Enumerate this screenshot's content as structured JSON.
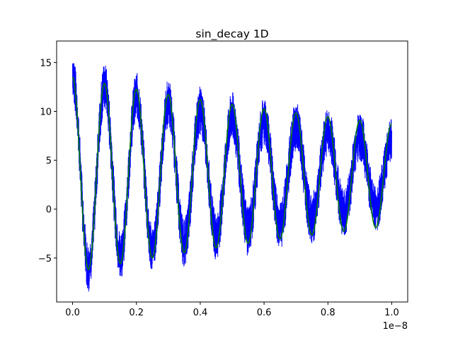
{
  "chart_data": {
    "type": "line",
    "title": "sin_decay 1D",
    "xlabel": "",
    "ylabel": "",
    "x_offset_label": "1e−8",
    "xlim": [
      -0.05,
      1.05
    ],
    "ylim": [
      -9.5,
      17.2
    ],
    "x_ticks": [
      0.0,
      0.2,
      0.4,
      0.6,
      0.8,
      1.0
    ],
    "x_tick_labels": [
      "0.0",
      "0.2",
      "0.4",
      "0.6",
      "0.8",
      "1.0"
    ],
    "y_ticks": [
      -5,
      0,
      5,
      10,
      15
    ],
    "y_tick_labels": [
      "−5",
      "0",
      "5",
      "10",
      "15"
    ],
    "grid": false,
    "legend": "none",
    "colors": {
      "noisy_data": "#0000ff",
      "fit": "#008000"
    },
    "series": [
      {
        "key": "noisy_data",
        "style": "dense noisy line",
        "x": [
          0.0,
          0.05,
          0.1,
          0.15,
          0.2,
          0.25,
          0.3,
          0.35,
          0.4,
          0.45,
          0.5,
          0.55,
          0.6,
          0.65,
          0.7,
          0.75,
          0.8,
          0.85,
          0.9,
          0.95,
          1.0
        ],
        "upper": [
          16.0,
          -3.5,
          15.0,
          -2.3,
          14.0,
          -1.7,
          13.3,
          -1.0,
          12.6,
          -0.4,
          12.0,
          0.5,
          11.5,
          1.0,
          11.0,
          1.6,
          10.5,
          2.0,
          10.0,
          2.5,
          9.5
        ],
        "lower": [
          11.2,
          -8.4,
          10.0,
          -7.4,
          9.2,
          -6.5,
          8.4,
          -6.0,
          7.6,
          -5.2,
          7.0,
          -4.8,
          6.5,
          -4.2,
          6.0,
          -3.6,
          5.5,
          -3.0,
          5.0,
          -2.4,
          4.6
        ]
      },
      {
        "key": "fit",
        "style": "smooth line",
        "amplitude": 10.0,
        "offset": 3.5,
        "decay_rate": 0.65,
        "period": 0.1
      }
    ]
  }
}
